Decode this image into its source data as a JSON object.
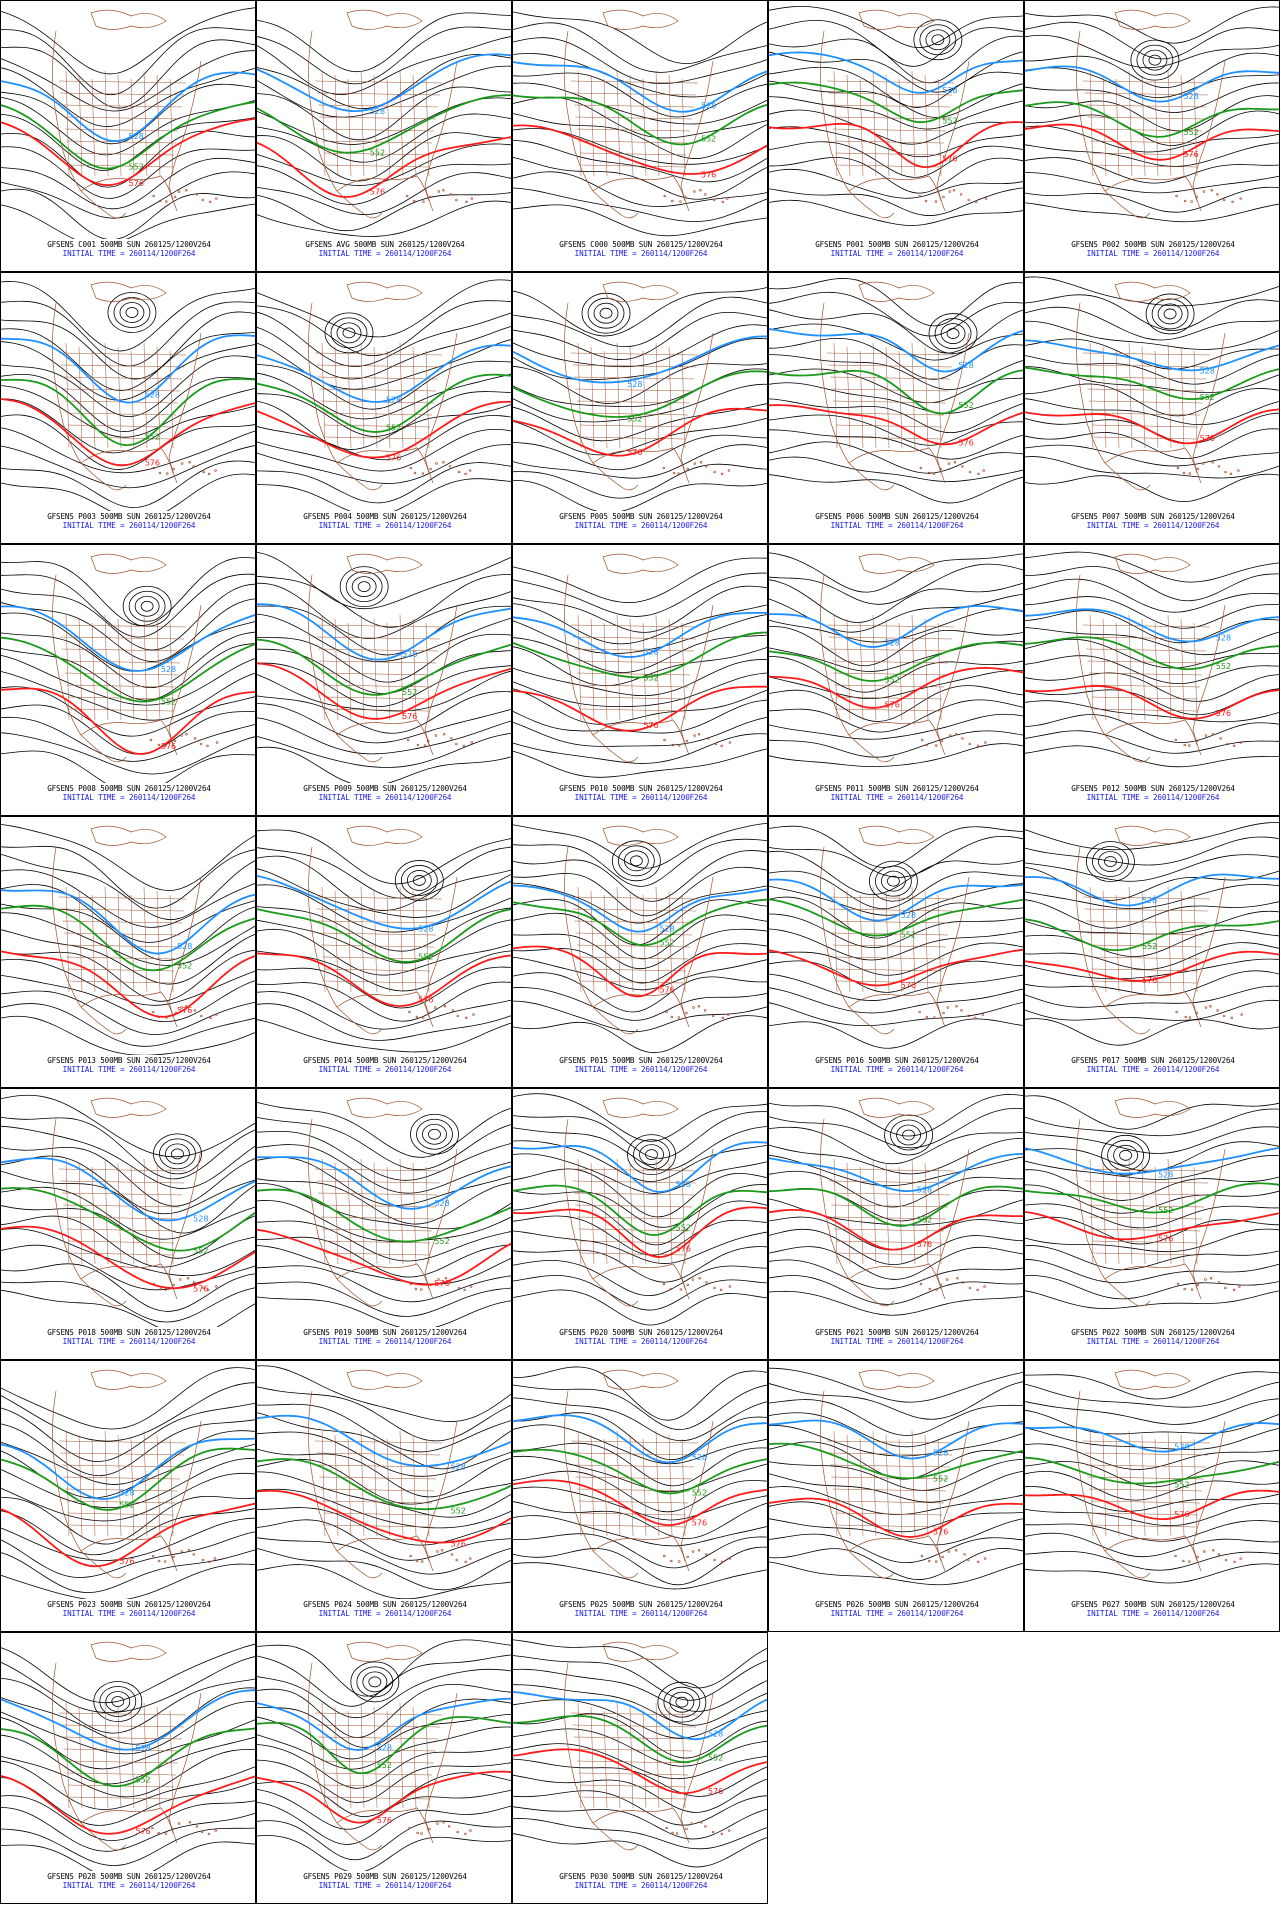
{
  "map_label": "500MB",
  "valid_label": "SUN 260125/1200V264",
  "initial_time": "INITIAL TIME = 260114/1200F264",
  "colors": {
    "height_contour": "#000000",
    "contour_528": "#1e90ff",
    "contour_552": "#1a9a1a",
    "contour_576": "#ff1a1a",
    "geography": "#a0522d",
    "caption_time": "#1a1ae6"
  },
  "contour_labels": {
    "c528": "528",
    "c552": "552",
    "c576": "576"
  },
  "panels": [
    {
      "member": "GFSENS C001",
      "caption": "GFSENS C001 500MB SUN 260125/1200V264",
      "time": "INITIAL TIME = 260114/1200F264"
    },
    {
      "member": "GFSENS AVG",
      "caption": "GFSENS AVG 500MB SUN 260125/1200V264",
      "time": "INITIAL TIME = 260114/1200F264"
    },
    {
      "member": "GFSENS C000",
      "caption": "GFSENS C000 500MB SUN 260125/1200V264",
      "time": "INITIAL TIME = 260114/1200F264"
    },
    {
      "member": "GFSENS P001",
      "caption": "GFSENS P001 500MB SUN 260125/1200V264",
      "time": "INITIAL TIME = 260114/1200F264"
    },
    {
      "member": "GFSENS P002",
      "caption": "GFSENS P002 500MB SUN 260125/1200V264",
      "time": "INITIAL TIME = 260114/1200F264"
    },
    {
      "member": "GFSENS P003",
      "caption": "GFSENS P003 500MB SUN 260125/1200V264",
      "time": "INITIAL TIME = 260114/1200F264"
    },
    {
      "member": "GFSENS P004",
      "caption": "GFSENS P004 500MB SUN 260125/1200V264",
      "time": "INITIAL TIME = 260114/1200F264"
    },
    {
      "member": "GFSENS P005",
      "caption": "GFSENS P005 500MB SUN 260125/1200V264",
      "time": "INITIAL TIME = 260114/1200F264"
    },
    {
      "member": "GFSENS P006",
      "caption": "GFSENS P006 500MB SUN 260125/1200V264",
      "time": "INITIAL TIME = 260114/1200F264"
    },
    {
      "member": "GFSENS P007",
      "caption": "GFSENS P007 500MB SUN 260125/1200V264",
      "time": "INITIAL TIME = 260114/1200F264"
    },
    {
      "member": "GFSENS P008",
      "caption": "GFSENS P008 500MB SUN 260125/1200V264",
      "time": "INITIAL TIME = 260114/1200F264"
    },
    {
      "member": "GFSENS P009",
      "caption": "GFSENS P009 500MB SUN 260125/1200V264",
      "time": "INITIAL TIME = 260114/1200F264"
    },
    {
      "member": "GFSENS P010",
      "caption": "GFSENS P010 500MB SUN 260125/1200V264",
      "time": "INITIAL TIME = 260114/1200F264"
    },
    {
      "member": "GFSENS P011",
      "caption": "GFSENS P011 500MB SUN 260125/1200V264",
      "time": "INITIAL TIME = 260114/1200F264"
    },
    {
      "member": "GFSENS P012",
      "caption": "GFSENS P012 500MB SUN 260125/1200V264",
      "time": "INITIAL TIME = 260114/1200F264"
    },
    {
      "member": "GFSENS P013",
      "caption": "GFSENS P013 500MB SUN 260125/1200V264",
      "time": "INITIAL TIME = 260114/1200F264"
    },
    {
      "member": "GFSENS P014",
      "caption": "GFSENS P014 500MB SUN 260125/1200V264",
      "time": "INITIAL TIME = 260114/1200F264"
    },
    {
      "member": "GFSENS P015",
      "caption": "GFSENS P015 500MB SUN 260125/1200V264",
      "time": "INITIAL TIME = 260114/1200F264"
    },
    {
      "member": "GFSENS P016",
      "caption": "GFSENS P016 500MB SUN 260125/1200V264",
      "time": "INITIAL TIME = 260114/1200F264"
    },
    {
      "member": "GFSENS P017",
      "caption": "GFSENS P017 500MB SUN 260125/1200V264",
      "time": "INITIAL TIME = 260114/1200F264"
    },
    {
      "member": "GFSENS P018",
      "caption": "GFSENS P018 500MB SUN 260125/1200V264",
      "time": "INITIAL TIME = 260114/1200F264"
    },
    {
      "member": "GFSENS P019",
      "caption": "GFSENS P019 500MB SUN 260125/1200V264",
      "time": "INITIAL TIME = 260114/1200F264"
    },
    {
      "member": "GFSENS P020",
      "caption": "GFSENS P020 500MB SUN 260125/1200V264",
      "time": "INITIAL TIME = 260114/1200F264"
    },
    {
      "member": "GFSENS P021",
      "caption": "GFSENS P021 500MB SUN 260125/1200V264",
      "time": "INITIAL TIME = 260114/1200F264"
    },
    {
      "member": "GFSENS P022",
      "caption": "GFSENS P022 500MB SUN 260125/1200V264",
      "time": "INITIAL TIME = 260114/1200F264"
    },
    {
      "member": "GFSENS P023",
      "caption": "GFSENS P023 500MB SUN 260125/1200V264",
      "time": "INITIAL TIME = 260114/1200F264"
    },
    {
      "member": "GFSENS P024",
      "caption": "GFSENS P024 500MB SUN 260125/1200V264",
      "time": "INITIAL TIME = 260114/1200F264"
    },
    {
      "member": "GFSENS P025",
      "caption": "GFSENS P025 500MB SUN 260125/1200V264",
      "time": "INITIAL TIME = 260114/1200F264"
    },
    {
      "member": "GFSENS P026",
      "caption": "GFSENS P026 500MB SUN 260125/1200V264",
      "time": "INITIAL TIME = 260114/1200F264"
    },
    {
      "member": "GFSENS P027",
      "caption": "GFSENS P027 500MB SUN 260125/1200V264",
      "time": "INITIAL TIME = 260114/1200F264"
    },
    {
      "member": "GFSENS P028",
      "caption": "GFSENS P028 500MB SUN 260125/1200V264",
      "time": "INITIAL TIME = 260114/1200F264"
    },
    {
      "member": "GFSENS P029",
      "caption": "GFSENS P029 500MB SUN 260125/1200V264",
      "time": "INITIAL TIME = 260114/1200F264"
    },
    {
      "member": "GFSENS P030",
      "caption": "GFSENS P030 500MB SUN 260125/1200V264",
      "time": "INITIAL TIME = 260114/1200F264"
    }
  ]
}
